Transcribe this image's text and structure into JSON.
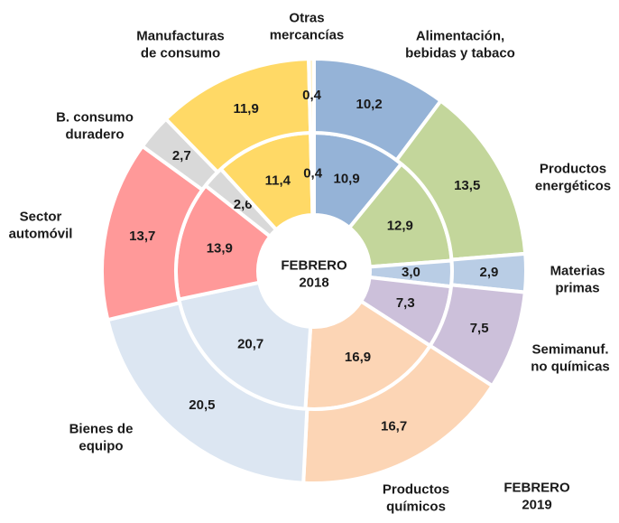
{
  "chart_data": {
    "type": "donut",
    "categories": [
      "Alimentación,\nbebidas y tabaco",
      "Productos\nenergéticos",
      "Materias\nprimas",
      "Semimanuf.\nno químicas",
      "Productos\nquímicos",
      "Bienes de\nequipo",
      "Sector\nautomóvil",
      "B. consumo\nduradero",
      "Manufacturas\nde consumo",
      "Otras\nmercancías"
    ],
    "colors": [
      "#95b3d7",
      "#c3d69b",
      "#b9cde5",
      "#ccc0da",
      "#fcd5b5",
      "#dce6f2",
      "#ff9999",
      "#d9d9d9",
      "#ffd966",
      "#fff2cc"
    ],
    "series": [
      {
        "name": "FEBRERO\n2018",
        "values": [
          10.9,
          12.9,
          3.0,
          7.3,
          16.9,
          20.7,
          13.9,
          2.6,
          11.4,
          0.4
        ],
        "value_labels": [
          "10,9",
          "12,9",
          "3,0",
          "7,3",
          "16,9",
          "20,7",
          "13,9",
          "2,6",
          "11,4",
          "0,4"
        ]
      },
      {
        "name": "FEBRERO\n2019",
        "values": [
          10.2,
          13.5,
          2.9,
          7.5,
          16.7,
          20.5,
          13.7,
          2.7,
          11.9,
          0.4
        ],
        "value_labels": [
          "10,2",
          "13,5",
          "2,9",
          "7,5",
          "16,7",
          "20,5",
          "13,7",
          "2,7",
          "11,9",
          "0,4"
        ]
      }
    ]
  }
}
